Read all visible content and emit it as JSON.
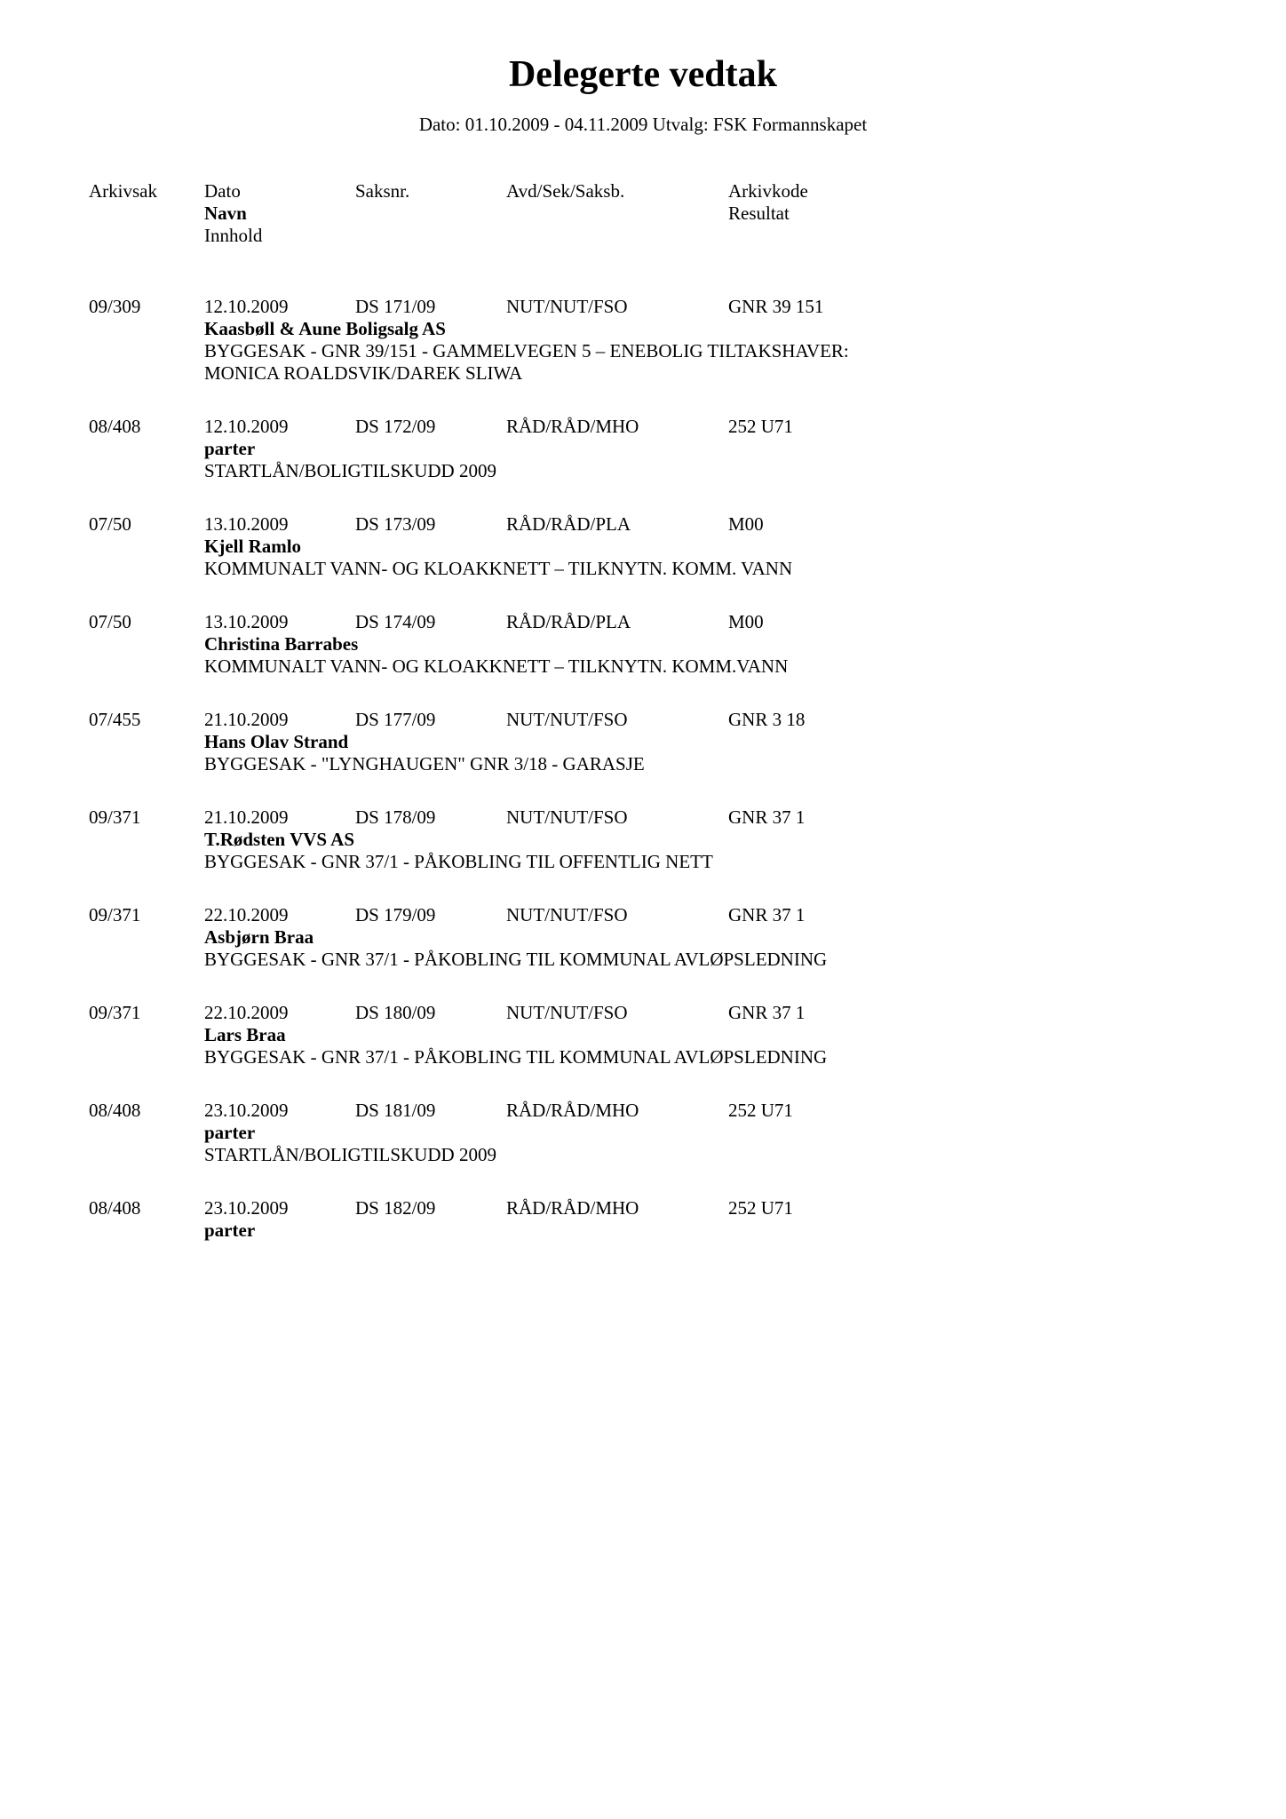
{
  "title": "Delegerte vedtak",
  "subtitle": "Dato: 01.10.2009 - 04.11.2009  Utvalg: FSK Formannskapet",
  "header": {
    "arkivsak": "Arkivsak",
    "dato": "Dato",
    "saksnr": "Saksnr.",
    "avd": "Avd/Sek/Saksb.",
    "arkivkode": "Arkivkode",
    "navn": "Navn",
    "resultat": "Resultat",
    "innhold": "Innhold"
  },
  "entries": [
    {
      "arkivsak": "09/309",
      "dato": "12.10.2009",
      "saksnr": "DS  171/09",
      "avd": "NUT/NUT/FSO",
      "arkivkode": "GNR  39 151",
      "navn": "Kaasbøll & Aune Boligsalg AS",
      "innhold": "BYGGESAK - GNR 39/151 - GAMMELVEGEN 5 – ENEBOLIG TILTAKSHAVER: MONICA ROALDSVIK/DAREK SLIWA"
    },
    {
      "arkivsak": "08/408",
      "dato": "12.10.2009",
      "saksnr": "DS  172/09",
      "avd": "RÅD/RÅD/MHO",
      "arkivkode": "252 U71",
      "navn": "parter",
      "innhold": "STARTLÅN/BOLIGTILSKUDD 2009"
    },
    {
      "arkivsak": "07/50",
      "dato": "13.10.2009",
      "saksnr": "DS  173/09",
      "avd": "RÅD/RÅD/PLA",
      "arkivkode": "M00",
      "navn": "Kjell Ramlo",
      "innhold": "KOMMUNALT VANN- OG KLOAKKNETT – TILKNYTN. KOMM. VANN"
    },
    {
      "arkivsak": "07/50",
      "dato": "13.10.2009",
      "saksnr": "DS  174/09",
      "avd": "RÅD/RÅD/PLA",
      "arkivkode": "M00",
      "navn": "Christina Barrabes",
      "innhold": "KOMMUNALT VANN- OG KLOAKKNETT – TILKNYTN. KOMM.VANN"
    },
    {
      "arkivsak": "07/455",
      "dato": "21.10.2009",
      "saksnr": "DS  177/09",
      "avd": "NUT/NUT/FSO",
      "arkivkode": "GNR  3  18",
      "navn": "Hans Olav Strand",
      "innhold": "BYGGESAK - \"LYNGHAUGEN\" GNR 3/18 - GARASJE"
    },
    {
      "arkivsak": "09/371",
      "dato": "21.10.2009",
      "saksnr": "DS  178/09",
      "avd": "NUT/NUT/FSO",
      "arkivkode": "GNR  37   1",
      "navn": "T.Rødsten VVS AS",
      "innhold": "BYGGESAK - GNR 37/1 - PÅKOBLING TIL OFFENTLIG NETT"
    },
    {
      "arkivsak": "09/371",
      "dato": "22.10.2009",
      "saksnr": "DS  179/09",
      "avd": "NUT/NUT/FSO",
      "arkivkode": "GNR  37   1",
      "navn": "Asbjørn Braa",
      "innhold": "BYGGESAK - GNR 37/1 - PÅKOBLING TIL KOMMUNAL AVLØPSLEDNING"
    },
    {
      "arkivsak": "09/371",
      "dato": "22.10.2009",
      "saksnr": "DS  180/09",
      "avd": "NUT/NUT/FSO",
      "arkivkode": "GNR  37   1",
      "navn": "Lars Braa",
      "innhold": "BYGGESAK - GNR 37/1 - PÅKOBLING TIL KOMMUNAL AVLØPSLEDNING"
    },
    {
      "arkivsak": "08/408",
      "dato": "23.10.2009",
      "saksnr": "DS  181/09",
      "avd": "RÅD/RÅD/MHO",
      "arkivkode": "252 U71",
      "navn": "parter",
      "innhold": "STARTLÅN/BOLIGTILSKUDD 2009"
    },
    {
      "arkivsak": "08/408",
      "dato": "23.10.2009",
      "saksnr": "DS  182/09",
      "avd": "RÅD/RÅD/MHO",
      "arkivkode": "252 U71",
      "navn": "parter",
      "innhold": ""
    }
  ]
}
